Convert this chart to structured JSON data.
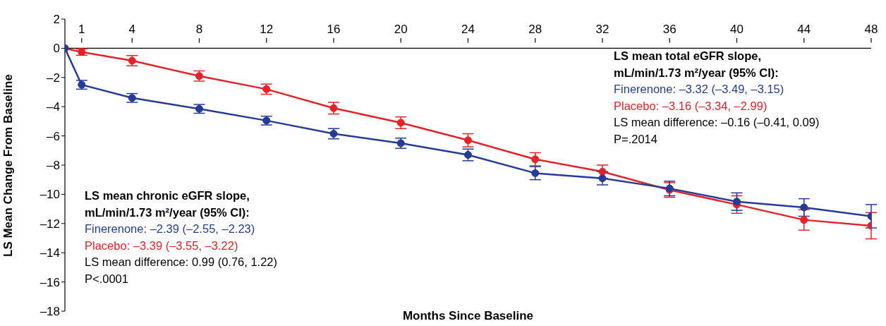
{
  "chart_data": {
    "type": "line",
    "xlabel": "Months Since Baseline",
    "ylabel": "LS Mean Change From Baseline",
    "x": [
      0,
      1,
      4,
      8,
      12,
      16,
      20,
      24,
      28,
      32,
      36,
      40,
      44,
      48
    ],
    "series": [
      {
        "color": "#253b95",
        "values": [
          0,
          -2.5,
          -3.4,
          -4.15,
          -4.95,
          -5.85,
          -6.5,
          -7.3,
          -8.55,
          -8.9,
          -9.6,
          -10.5,
          -10.9,
          -11.5
        ],
        "errors": [
          null,
          0.3,
          0.3,
          0.3,
          0.3,
          0.35,
          0.35,
          0.4,
          0.45,
          0.45,
          0.5,
          0.6,
          0.6,
          0.8
        ]
      },
      {
        "color": "#e32327",
        "values": [
          0,
          -0.26,
          -0.85,
          -1.9,
          -2.8,
          -4.1,
          -5.1,
          -6.3,
          -7.6,
          -8.45,
          -9.7,
          -10.7,
          -11.75,
          -12.15
        ],
        "errors": [
          null,
          0.22,
          0.35,
          0.35,
          0.35,
          0.4,
          0.4,
          0.45,
          0.45,
          0.45,
          0.5,
          0.6,
          0.7,
          0.9
        ]
      }
    ],
    "xlim": [
      0,
      48
    ],
    "xticks": [
      1,
      4,
      8,
      12,
      16,
      20,
      24,
      28,
      32,
      36,
      40,
      44,
      48
    ],
    "ylim": [
      -18,
      2
    ],
    "yticks": [
      2,
      0,
      {
        "value": -2,
        "label": "–2"
      },
      {
        "value": -4,
        "label": "–4"
      },
      {
        "value": -6,
        "label": "–6"
      },
      {
        "value": -8,
        "label": "–8"
      },
      {
        "value": -10,
        "label": "–10"
      },
      {
        "value": -12,
        "label": "–12"
      },
      {
        "value": -14,
        "label": "–14"
      },
      {
        "value": -16,
        "label": "–16"
      },
      {
        "value": -18,
        "label": "–18"
      }
    ],
    "marker": "circle",
    "annotations": [
      "LS mean total eGFR slope,",
      "mL/min/1.73 m²/year (95% CI):",
      "Finerenone: –3.32 (–3.49, –3.15)",
      "Placebo: –3.16 (–3.34, –2.99)",
      "LS mean difference: –0.16 (–0.41, 0.09)",
      "P=.2014",
      "LS mean chronic eGFR slope,",
      "mL/min/1.73 m²/year (95% CI):",
      "Finerenone: –2.39 (–2.55, –2.23)",
      "Placebo: –3.39 (–3.55, –3.22)",
      "LS mean difference: 0.99 (0.76, 1.22)",
      "P<.0001"
    ]
  }
}
